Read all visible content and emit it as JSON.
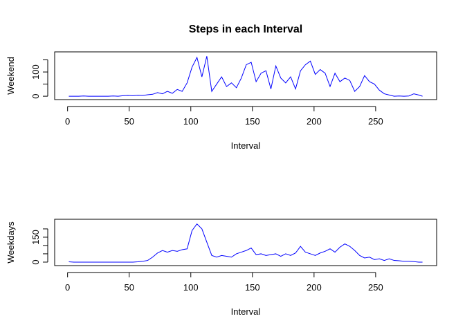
{
  "chart_data": [
    {
      "type": "line",
      "title": "Steps in each Interval",
      "xlabel": "Interval",
      "ylabel": "Weekend",
      "color": "#0000ff",
      "xlim": [
        -10.48,
        299.48
      ],
      "xticks": [
        0,
        50,
        100,
        150,
        200,
        250
      ],
      "ylim": [
        -14,
        183
      ],
      "yticks": [
        0,
        100
      ],
      "yticks_unlabeled": [
        50,
        150
      ],
      "series": [
        {
          "x": [
            1,
            5,
            9,
            13,
            17,
            21,
            25,
            29,
            33,
            37,
            41,
            45,
            49,
            53,
            57,
            61,
            65,
            69,
            73,
            77,
            81,
            85,
            89,
            93,
            97,
            101,
            105,
            109,
            113,
            117,
            121,
            125,
            129,
            133,
            137,
            141,
            145,
            149,
            153,
            157,
            161,
            165,
            169,
            173,
            177,
            181,
            185,
            189,
            193,
            197,
            201,
            205,
            209,
            213,
            217,
            221,
            225,
            229,
            233,
            237,
            241,
            245,
            249,
            253,
            257,
            261,
            265,
            269,
            273,
            277,
            281,
            285,
            288
          ],
          "values": [
            0,
            0,
            0,
            1,
            0,
            0,
            0,
            0,
            0,
            1,
            0,
            2,
            3,
            2,
            4,
            3,
            6,
            8,
            15,
            10,
            20,
            12,
            28,
            20,
            55,
            120,
            160,
            80,
            165,
            20,
            50,
            80,
            40,
            55,
            35,
            75,
            130,
            140,
            60,
            95,
            105,
            30,
            125,
            75,
            55,
            80,
            30,
            105,
            130,
            145,
            90,
            110,
            95,
            40,
            95,
            60,
            75,
            65,
            20,
            40,
            85,
            60,
            50,
            25,
            10,
            5,
            0,
            1,
            0,
            1,
            10,
            5,
            0
          ]
        }
      ]
    },
    {
      "type": "line",
      "xlabel": "Interval",
      "ylabel": "Weekdays",
      "color": "#0000ff",
      "xlim": [
        -10.48,
        299.48
      ],
      "xticks": [
        0,
        50,
        100,
        150,
        200,
        250
      ],
      "ylim": [
        -21,
        258
      ],
      "yticks": [
        0,
        150
      ],
      "yticks_unlabeled": [
        50,
        100,
        200
      ],
      "series": [
        {
          "x": [
            1,
            5,
            9,
            13,
            17,
            21,
            25,
            29,
            33,
            37,
            41,
            45,
            49,
            53,
            57,
            61,
            65,
            69,
            73,
            77,
            81,
            85,
            89,
            93,
            97,
            101,
            105,
            109,
            113,
            117,
            121,
            125,
            129,
            133,
            137,
            141,
            145,
            149,
            153,
            157,
            161,
            165,
            169,
            173,
            177,
            181,
            185,
            189,
            193,
            197,
            201,
            205,
            209,
            213,
            217,
            221,
            225,
            229,
            233,
            237,
            241,
            245,
            249,
            253,
            257,
            261,
            265,
            269,
            273,
            277,
            281,
            285,
            288
          ],
          "values": [
            2,
            0,
            0,
            0,
            0,
            0,
            0,
            0,
            0,
            0,
            0,
            0,
            0,
            0,
            2,
            5,
            10,
            30,
            55,
            70,
            60,
            70,
            65,
            75,
            80,
            190,
            230,
            200,
            120,
            40,
            30,
            40,
            35,
            30,
            50,
            60,
            70,
            85,
            45,
            50,
            40,
            45,
            50,
            35,
            50,
            40,
            55,
            95,
            60,
            50,
            40,
            55,
            65,
            80,
            60,
            90,
            110,
            95,
            70,
            40,
            25,
            30,
            15,
            20,
            10,
            20,
            10,
            8,
            5,
            5,
            3,
            0,
            0
          ]
        }
      ]
    }
  ]
}
